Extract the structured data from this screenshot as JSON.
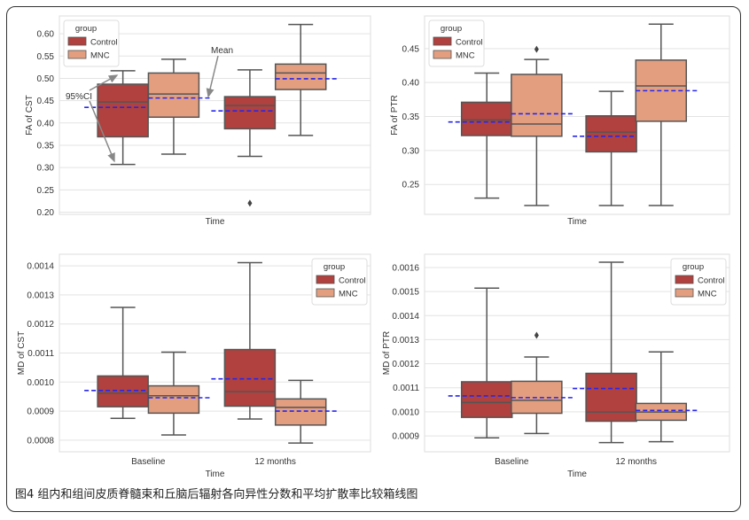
{
  "caption": "图4 组内和组间皮质脊髓束和丘脑后辐射各向异性分数和平均扩散率比较箱线图",
  "colors": {
    "Control": "#b0413e",
    "MNC": "#e39e80",
    "mean_line": "#2626f0",
    "box_edge": "#555555"
  },
  "chart_data": [
    {
      "type": "box",
      "xlabel": "Time",
      "ylabel": "FA of CST",
      "categories": [
        "",
        ""
      ],
      "ylim": [
        0.195,
        0.64
      ],
      "yticks": [
        0.2,
        0.25,
        0.3,
        0.35,
        0.4,
        0.45,
        0.5,
        0.55,
        0.6
      ],
      "ytick_labels": [
        "0.20",
        "0.25",
        "0.30",
        "0.35",
        "0.40",
        "0.45",
        "0.50",
        "0.55",
        "0.60"
      ],
      "grid": true,
      "legend": {
        "title": "group",
        "entries": [
          "Control",
          "MNC"
        ],
        "placement": "top-left"
      },
      "series": [
        {
          "name": "Control",
          "boxes": [
            {
              "whisker_low": 0.307,
              "q1": 0.369,
              "median": 0.447,
              "q3": 0.487,
              "whisker_high": 0.517,
              "mean": 0.435,
              "outliers": []
            },
            {
              "whisker_low": 0.325,
              "q1": 0.387,
              "median": 0.439,
              "q3": 0.459,
              "whisker_high": 0.519,
              "mean": 0.427,
              "outliers": [
                0.22
              ]
            }
          ]
        },
        {
          "name": "MNC",
          "boxes": [
            {
              "whisker_low": 0.33,
              "q1": 0.413,
              "median": 0.465,
              "q3": 0.512,
              "whisker_high": 0.543,
              "mean": 0.456,
              "outliers": []
            },
            {
              "whisker_low": 0.372,
              "q1": 0.475,
              "median": 0.512,
              "q3": 0.532,
              "whisker_high": 0.621,
              "mean": 0.499,
              "outliers": []
            }
          ]
        }
      ],
      "annotations": [
        "Mean",
        "95%CI"
      ]
    },
    {
      "type": "box",
      "xlabel": "Time",
      "ylabel": "FA of PTR",
      "categories": [
        "",
        ""
      ],
      "ylim": [
        0.206,
        0.498
      ],
      "yticks": [
        0.25,
        0.3,
        0.35,
        0.4,
        0.45
      ],
      "ytick_labels": [
        "0.25",
        "0.30",
        "0.35",
        "0.40",
        "0.45"
      ],
      "grid": true,
      "legend": {
        "title": "group",
        "entries": [
          "Control",
          "MNC"
        ],
        "placement": "top-left"
      },
      "series": [
        {
          "name": "Control",
          "boxes": [
            {
              "whisker_low": 0.23,
              "q1": 0.322,
              "median": 0.345,
              "q3": 0.371,
              "whisker_high": 0.414,
              "mean": 0.342,
              "outliers": []
            },
            {
              "whisker_low": 0.219,
              "q1": 0.298,
              "median": 0.327,
              "q3": 0.351,
              "whisker_high": 0.387,
              "mean": 0.321,
              "outliers": []
            }
          ]
        },
        {
          "name": "MNC",
          "boxes": [
            {
              "whisker_low": 0.219,
              "q1": 0.321,
              "median": 0.339,
              "q3": 0.412,
              "whisker_high": 0.434,
              "mean": 0.354,
              "outliers": [
                0.449
              ]
            },
            {
              "whisker_low": 0.219,
              "q1": 0.343,
              "median": 0.395,
              "q3": 0.433,
              "whisker_high": 0.486,
              "mean": 0.388,
              "outliers": []
            }
          ]
        }
      ]
    },
    {
      "type": "box",
      "xlabel": "Time",
      "ylabel": "MD of CST",
      "categories": [
        "Baseline",
        "12 months"
      ],
      "ylim": [
        0.00076,
        0.00144
      ],
      "yticks": [
        0.0008,
        0.0009,
        0.001,
        0.0011,
        0.0012,
        0.0013,
        0.0014
      ],
      "ytick_labels": [
        "0.0008",
        "0.0009",
        "0.0010",
        "0.0011",
        "0.0012",
        "0.0013",
        "0.0014"
      ],
      "grid": true,
      "legend": {
        "title": "group",
        "entries": [
          "Control",
          "MNC"
        ],
        "placement": "top-right"
      },
      "series": [
        {
          "name": "Control",
          "boxes": [
            {
              "whisker_low": 0.000875,
              "q1": 0.000915,
              "median": 0.000962,
              "q3": 0.001021,
              "whisker_high": 0.001257,
              "mean": 0.000971,
              "outliers": []
            },
            {
              "whisker_low": 0.000873,
              "q1": 0.000917,
              "median": 0.000967,
              "q3": 0.001112,
              "whisker_high": 0.001411,
              "mean": 0.001011,
              "outliers": []
            }
          ]
        },
        {
          "name": "MNC",
          "boxes": [
            {
              "whisker_low": 0.000818,
              "q1": 0.000893,
              "median": 0.000953,
              "q3": 0.000987,
              "whisker_high": 0.001103,
              "mean": 0.000946,
              "outliers": []
            },
            {
              "whisker_low": 0.00079,
              "q1": 0.000852,
              "median": 0.000913,
              "q3": 0.000942,
              "whisker_high": 0.001006,
              "mean": 0.0009,
              "outliers": []
            }
          ]
        }
      ]
    },
    {
      "type": "box",
      "xlabel": "Time",
      "ylabel": "MD of PTR",
      "categories": [
        "Baseline",
        "12 months"
      ],
      "ylim": [
        0.000834,
        0.001655
      ],
      "yticks": [
        0.0009,
        0.001,
        0.0011,
        0.0012,
        0.0013,
        0.0014,
        0.0015,
        0.0016
      ],
      "ytick_labels": [
        "0.0009",
        "0.0010",
        "0.0011",
        "0.0012",
        "0.0013",
        "0.0014",
        "0.0015",
        "0.0016"
      ],
      "grid": true,
      "legend": {
        "title": "group",
        "entries": [
          "Control",
          "MNC"
        ],
        "placement": "top-right"
      },
      "series": [
        {
          "name": "Control",
          "boxes": [
            {
              "whisker_low": 0.000892,
              "q1": 0.000977,
              "median": 0.001039,
              "q3": 0.001125,
              "whisker_high": 0.001514,
              "mean": 0.001066,
              "outliers": []
            },
            {
              "whisker_low": 0.000872,
              "q1": 0.000961,
              "median": 0.000999,
              "q3": 0.00116,
              "whisker_high": 0.001622,
              "mean": 0.001097,
              "outliers": []
            }
          ]
        },
        {
          "name": "MNC",
          "boxes": [
            {
              "whisker_low": 0.00091,
              "q1": 0.000994,
              "median": 0.001048,
              "q3": 0.001127,
              "whisker_high": 0.001228,
              "mean": 0.001059,
              "outliers": [
                0.001318
              ]
            },
            {
              "whisker_low": 0.000876,
              "q1": 0.000965,
              "median": 0.000999,
              "q3": 0.001035,
              "whisker_high": 0.001249,
              "mean": 0.001006,
              "outliers": []
            }
          ]
        }
      ]
    }
  ]
}
